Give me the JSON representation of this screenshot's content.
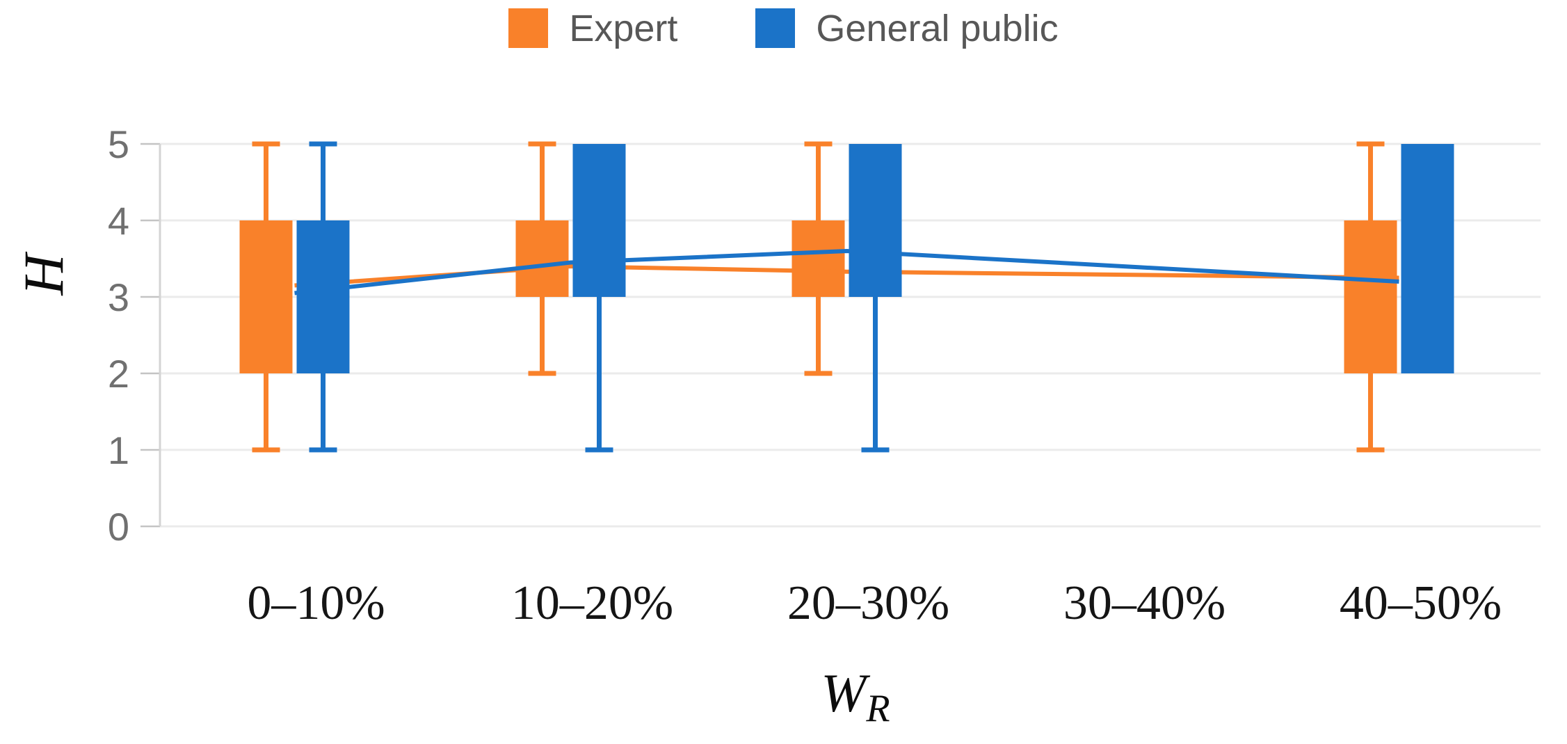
{
  "legend": {
    "items": [
      {
        "label": "Expert",
        "color": "#F9812A"
      },
      {
        "label": "General public",
        "color": "#1B73C8"
      }
    ]
  },
  "chart_data": {
    "type": "boxplot",
    "title": "",
    "xlabel": "W_R",
    "xlabel_base": "W",
    "xlabel_sub": "R",
    "ylabel": "H",
    "ylim": [
      0,
      5
    ],
    "y_ticks": [
      0,
      1,
      2,
      3,
      4,
      5
    ],
    "grid": true,
    "legend_position": "top-center",
    "categories": [
      "0–10%",
      "10–20%",
      "20–30%",
      "30–40%",
      "40–50%"
    ],
    "series": [
      {
        "name": "Expert",
        "color": "#F9812A",
        "boxes": [
          {
            "category": "0–10%",
            "whisker_low": 1,
            "q1": 2,
            "q3": 4,
            "whisker_high": 5,
            "mean": 3.15
          },
          {
            "category": "10–20%",
            "whisker_low": 2,
            "q1": 3,
            "q3": 4,
            "whisker_high": 5,
            "mean": 3.4
          },
          {
            "category": "20–30%",
            "whisker_low": 2,
            "q1": 3,
            "q3": 4,
            "whisker_high": 5,
            "mean": 3.33
          },
          null,
          {
            "category": "40–50%",
            "whisker_low": 1,
            "q1": 2,
            "q3": 4,
            "whisker_high": 5,
            "mean": 3.25
          }
        ]
      },
      {
        "name": "General public",
        "color": "#1B73C8",
        "boxes": [
          {
            "category": "0–10%",
            "whisker_low": 1,
            "q1": 2,
            "q3": 4,
            "whisker_high": 5,
            "mean": 3.05
          },
          {
            "category": "10–20%",
            "whisker_low": 1,
            "q1": 3,
            "q3": 5,
            "whisker_high": 5,
            "mean": 3.45
          },
          {
            "category": "20–30%",
            "whisker_low": 1,
            "q1": 3,
            "q3": 5,
            "whisker_high": 5,
            "mean": 3.6
          },
          null,
          {
            "category": "40–50%",
            "whisker_low": 2,
            "q1": 2,
            "q3": 5,
            "whisker_high": 5,
            "mean": 3.2
          }
        ]
      }
    ]
  },
  "style": {
    "gridline_color": "#ebebeb",
    "axis_color": "#d4d4d4",
    "tick_color": "#c4c4c4",
    "tick_label_color": "#707070",
    "category_label_color": "#151515"
  }
}
